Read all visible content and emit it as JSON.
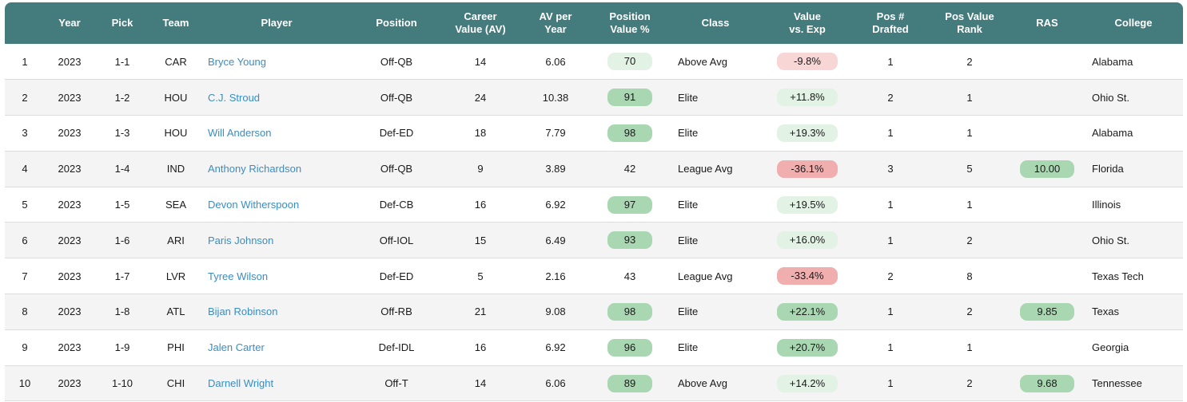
{
  "columns": [
    "",
    "Year",
    "Pick",
    "Team",
    "Player",
    "Position",
    "Career Value (AV)",
    "AV per Year",
    "Position Value %",
    "Class",
    "Value vs. Exp",
    "Pos # Drafted",
    "Pos Value Rank",
    "RAS",
    "College"
  ],
  "colors": {
    "header_bg": "#447b7d",
    "link": "#3a8dc3",
    "pill_green_strong": "#a9d7b2",
    "pill_green_light": "#e2f2e5",
    "pill_red_strong": "#f0aeae",
    "pill_red_light": "#f8d6d6"
  },
  "rows": [
    {
      "rank": "1",
      "year": "2023",
      "pick": "1-1",
      "team": "CAR",
      "player": "Bryce Young",
      "position": "Off-QB",
      "career_av": "14",
      "av_per_year": "6.06",
      "pos_value_pct": "70",
      "pos_value_style": "green-light",
      "class": "Above Avg",
      "value_vs_exp": "-9.8%",
      "vve_style": "red-light",
      "pos_drafted": "1",
      "pos_value_rank": "2",
      "ras": "",
      "college": "Alabama"
    },
    {
      "rank": "2",
      "year": "2023",
      "pick": "1-2",
      "team": "HOU",
      "player": "C.J. Stroud",
      "position": "Off-QB",
      "career_av": "24",
      "av_per_year": "10.38",
      "pos_value_pct": "91",
      "pos_value_style": "green-strong",
      "class": "Elite",
      "value_vs_exp": "+11.8%",
      "vve_style": "green-light",
      "pos_drafted": "2",
      "pos_value_rank": "1",
      "ras": "",
      "college": "Ohio St."
    },
    {
      "rank": "3",
      "year": "2023",
      "pick": "1-3",
      "team": "HOU",
      "player": "Will Anderson",
      "position": "Def-ED",
      "career_av": "18",
      "av_per_year": "7.79",
      "pos_value_pct": "98",
      "pos_value_style": "green-strong",
      "class": "Elite",
      "value_vs_exp": "+19.3%",
      "vve_style": "green-light",
      "pos_drafted": "1",
      "pos_value_rank": "1",
      "ras": "",
      "college": "Alabama"
    },
    {
      "rank": "4",
      "year": "2023",
      "pick": "1-4",
      "team": "IND",
      "player": "Anthony Richardson",
      "position": "Off-QB",
      "career_av": "9",
      "av_per_year": "3.89",
      "pos_value_pct": "42",
      "pos_value_style": "none",
      "class": "League Avg",
      "value_vs_exp": "-36.1%",
      "vve_style": "red-strong",
      "pos_drafted": "3",
      "pos_value_rank": "5",
      "ras": "10.00",
      "college": "Florida"
    },
    {
      "rank": "5",
      "year": "2023",
      "pick": "1-5",
      "team": "SEA",
      "player": "Devon Witherspoon",
      "position": "Def-CB",
      "career_av": "16",
      "av_per_year": "6.92",
      "pos_value_pct": "97",
      "pos_value_style": "green-strong",
      "class": "Elite",
      "value_vs_exp": "+19.5%",
      "vve_style": "green-light",
      "pos_drafted": "1",
      "pos_value_rank": "1",
      "ras": "",
      "college": "Illinois"
    },
    {
      "rank": "6",
      "year": "2023",
      "pick": "1-6",
      "team": "ARI",
      "player": "Paris Johnson",
      "position": "Off-IOL",
      "career_av": "15",
      "av_per_year": "6.49",
      "pos_value_pct": "93",
      "pos_value_style": "green-strong",
      "class": "Elite",
      "value_vs_exp": "+16.0%",
      "vve_style": "green-light",
      "pos_drafted": "1",
      "pos_value_rank": "2",
      "ras": "",
      "college": "Ohio St."
    },
    {
      "rank": "7",
      "year": "2023",
      "pick": "1-7",
      "team": "LVR",
      "player": "Tyree Wilson",
      "position": "Def-ED",
      "career_av": "5",
      "av_per_year": "2.16",
      "pos_value_pct": "43",
      "pos_value_style": "none",
      "class": "League Avg",
      "value_vs_exp": "-33.4%",
      "vve_style": "red-strong",
      "pos_drafted": "2",
      "pos_value_rank": "8",
      "ras": "",
      "college": "Texas Tech"
    },
    {
      "rank": "8",
      "year": "2023",
      "pick": "1-8",
      "team": "ATL",
      "player": "Bijan Robinson",
      "position": "Off-RB",
      "career_av": "21",
      "av_per_year": "9.08",
      "pos_value_pct": "98",
      "pos_value_style": "green-strong",
      "class": "Elite",
      "value_vs_exp": "+22.1%",
      "vve_style": "green-strong",
      "pos_drafted": "1",
      "pos_value_rank": "2",
      "ras": "9.85",
      "college": "Texas"
    },
    {
      "rank": "9",
      "year": "2023",
      "pick": "1-9",
      "team": "PHI",
      "player": "Jalen Carter",
      "position": "Def-IDL",
      "career_av": "16",
      "av_per_year": "6.92",
      "pos_value_pct": "96",
      "pos_value_style": "green-strong",
      "class": "Elite",
      "value_vs_exp": "+20.7%",
      "vve_style": "green-strong",
      "pos_drafted": "1",
      "pos_value_rank": "1",
      "ras": "",
      "college": "Georgia"
    },
    {
      "rank": "10",
      "year": "2023",
      "pick": "1-10",
      "team": "CHI",
      "player": "Darnell Wright",
      "position": "Off-T",
      "career_av": "14",
      "av_per_year": "6.06",
      "pos_value_pct": "89",
      "pos_value_style": "green-strong",
      "class": "Above Avg",
      "value_vs_exp": "+14.2%",
      "vve_style": "green-light",
      "pos_drafted": "1",
      "pos_value_rank": "2",
      "ras": "9.68",
      "college": "Tennessee"
    }
  ]
}
